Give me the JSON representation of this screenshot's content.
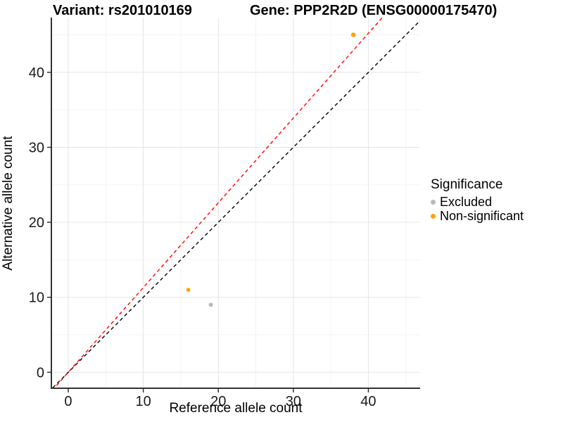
{
  "titles": {
    "left": "Variant: rs201010169",
    "right": "Gene: PPP2R2D (ENSG00000175470)"
  },
  "axes": {
    "x": {
      "label": "Reference allele count",
      "ticks": [
        0,
        10,
        20,
        30,
        40
      ],
      "minor_ticks": [
        5,
        15,
        25,
        35,
        45
      ],
      "range": [
        -2.25,
        46.9
      ]
    },
    "y": {
      "label": "Alternative allele count",
      "ticks": [
        0,
        10,
        20,
        30,
        40
      ],
      "minor_ticks": [
        5,
        15,
        25,
        35,
        45
      ],
      "range": [
        -2.13,
        47.3
      ]
    }
  },
  "legend": {
    "title": "Significance",
    "items": [
      {
        "label": "Excluded",
        "color": "#B8B8B8"
      },
      {
        "label": "Non-significant",
        "color": "#FFA400"
      }
    ]
  },
  "colors": {
    "background": "#ffffff",
    "grid_major": "#E4E4E4",
    "grid_minor": "#F3F3F3",
    "axis_line": "#333333",
    "tick_text": "#1a1a1a",
    "identity_line": "#000000",
    "ratio_line": "#FF0000"
  },
  "chart_data": {
    "type": "scatter",
    "title_left": "Variant: rs201010169",
    "title_right": "Gene: PPP2R2D (ENSG00000175470)",
    "xlabel": "Reference allele count",
    "ylabel": "Alternative allele count",
    "xlim": [
      -2.25,
      46.9
    ],
    "ylim": [
      -2.13,
      47.3
    ],
    "grid": true,
    "legend_position": "right",
    "legend_title": "Significance",
    "points": [
      {
        "x": 38,
        "y": 45,
        "significance": "Non-significant",
        "color": "#FFA400",
        "r": 3.3
      },
      {
        "x": 16,
        "y": 11,
        "significance": "Non-significant",
        "color": "#FFA400",
        "r": 2.9
      },
      {
        "x": 19,
        "y": 9,
        "significance": "Excluded",
        "color": "#B8B8B8",
        "r": 2.9
      }
    ],
    "lines": [
      {
        "name": "identity",
        "slope": 1.0,
        "intercept": 0,
        "color": "#000000",
        "dashed": true
      },
      {
        "name": "expected-ratio",
        "slope": 1.13,
        "intercept": 0,
        "color": "#FF0000",
        "dashed": true
      }
    ]
  }
}
